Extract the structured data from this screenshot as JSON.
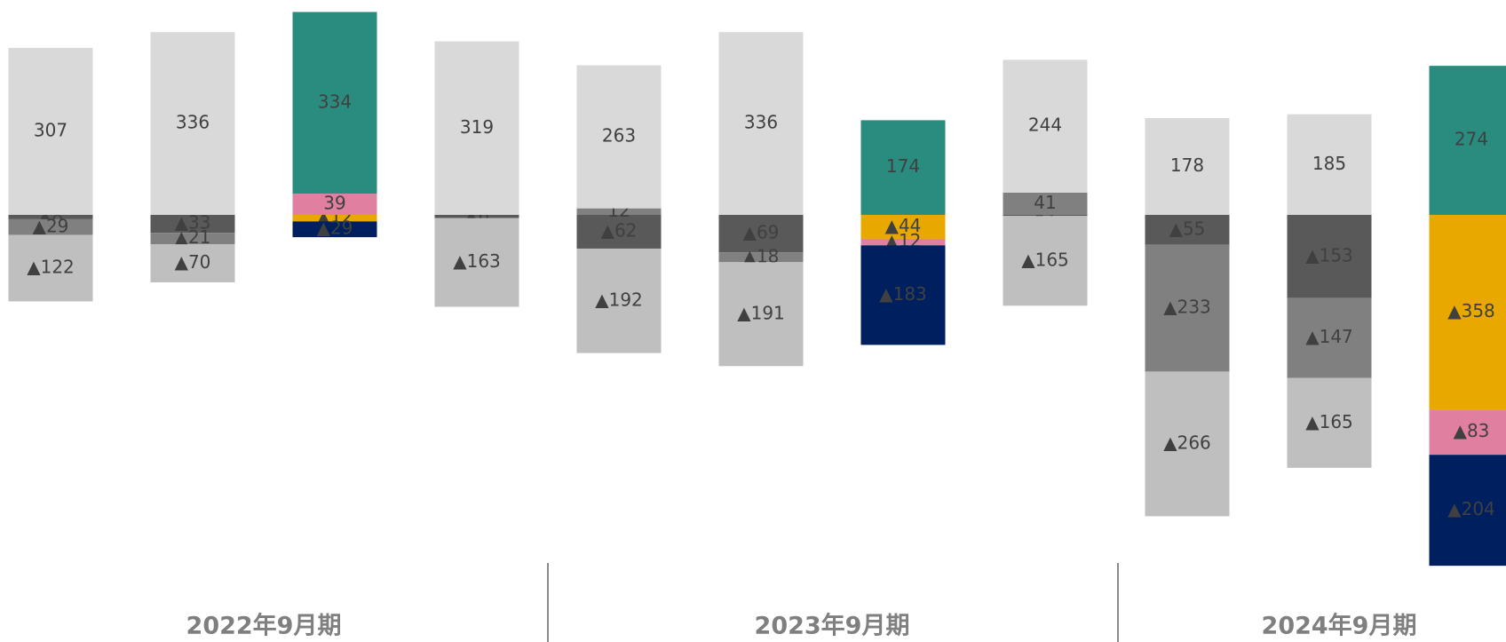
{
  "chart_data": {
    "type": "stacked-bar",
    "ylim": [
      -666,
      395
    ],
    "groups": [
      "2022年9月期",
      "2023年9月期",
      "2024年9月期"
    ],
    "series": [
      {
        "color": "#595959",
        "values": [
          -8,
          -33,
          null,
          -6,
          -62,
          -69,
          null,
          -2,
          -55,
          -153,
          null
        ],
        "value_labels": [
          "▲8",
          "▲33",
          null,
          "▲6",
          "▲62",
          "▲69",
          null,
          "▲2",
          "▲55",
          "▲153",
          null
        ]
      },
      {
        "color": "#808080",
        "values": [
          -29,
          -21,
          null,
          null,
          12,
          -18,
          null,
          41,
          -233,
          -147,
          null
        ],
        "value_labels": [
          "▲29",
          "▲21",
          null,
          null,
          "12",
          "▲18",
          null,
          "41",
          "▲233",
          "▲147",
          null
        ]
      },
      {
        "color": "#e8a800",
        "values": [
          null,
          null,
          -12,
          null,
          null,
          null,
          -44,
          null,
          null,
          null,
          -358
        ],
        "value_labels": [
          null,
          null,
          "▲12",
          null,
          null,
          null,
          "▲44",
          null,
          null,
          null,
          "▲358"
        ]
      },
      {
        "color": "#e07fa0",
        "values": [
          null,
          null,
          39,
          null,
          null,
          null,
          -12,
          null,
          null,
          null,
          -83
        ],
        "value_labels": [
          null,
          null,
          "39",
          null,
          null,
          null,
          "▲12",
          null,
          null,
          null,
          "▲83"
        ]
      },
      {
        "color": "#001f5f",
        "values": [
          null,
          null,
          -29,
          null,
          null,
          null,
          -183,
          null,
          null,
          null,
          -204
        ],
        "value_labels": [
          null,
          null,
          "▲29",
          null,
          null,
          null,
          "▲183",
          null,
          null,
          null,
          "▲204"
        ]
      },
      {
        "color": "#bfbfbf",
        "values": [
          -122,
          -70,
          null,
          -163,
          -192,
          -191,
          null,
          -165,
          -266,
          -165,
          null
        ],
        "value_labels": [
          "▲122",
          "▲70",
          null,
          "▲163",
          "▲192",
          "▲191",
          null,
          "▲165",
          "▲266",
          "▲165",
          null
        ]
      },
      {
        "color": "#d9d9d9",
        "values": [
          307,
          336,
          null,
          319,
          263,
          336,
          null,
          244,
          178,
          185,
          null
        ]
      },
      {
        "color": "#2a8c7f",
        "values": [
          null,
          null,
          334,
          null,
          null,
          null,
          174,
          null,
          null,
          null,
          274
        ]
      }
    ]
  }
}
